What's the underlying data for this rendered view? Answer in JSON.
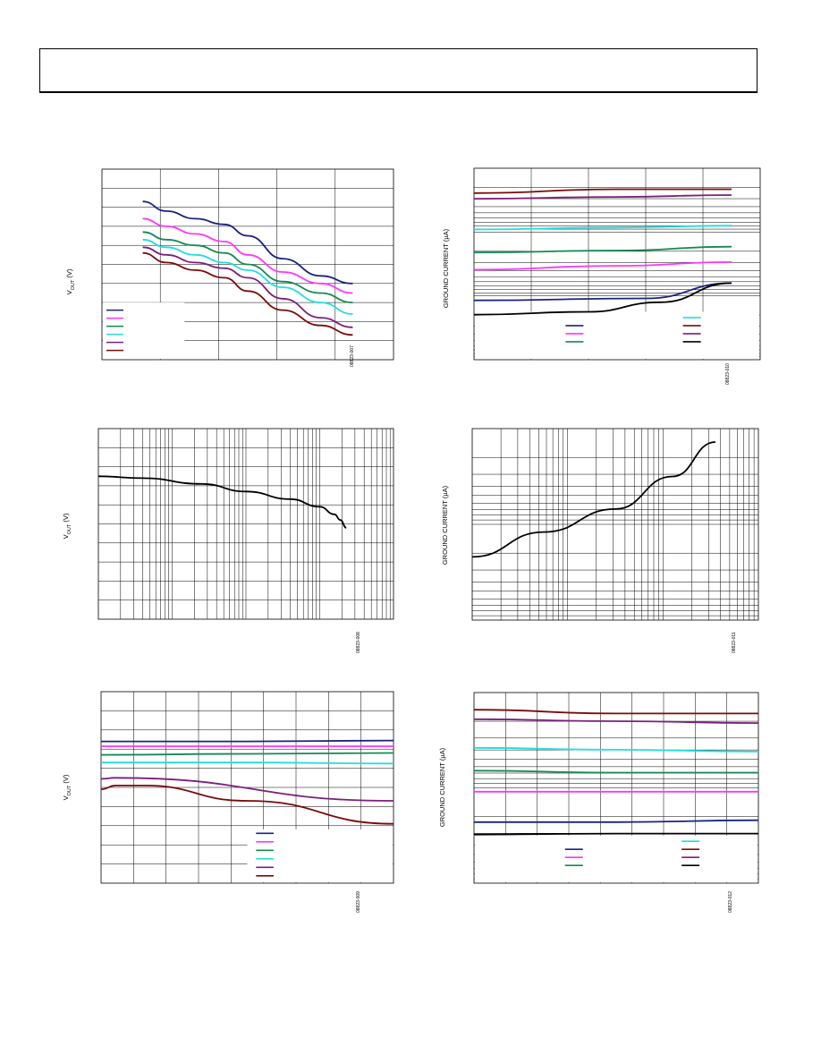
{
  "header": {
    "title": ""
  },
  "charts": [
    {
      "id": "c1",
      "type": "line",
      "ylabel_main": "V",
      "ylabel_sub": "OUT",
      "ylabel_unit": " (V)",
      "figure_code": "08823-007",
      "x_range": [
        0,
        1
      ],
      "y_range": [
        0,
        1
      ],
      "grid": {
        "vlines": 5,
        "hlines": 10
      },
      "legend": {
        "position": "bottom-left",
        "colors": [
          "#1a237e",
          "#ff33ff",
          "#138a52",
          "#22dddd",
          "#7b1f7b",
          "#7a0a0a"
        ]
      },
      "chart_data": {
        "type": "line",
        "series": [
          {
            "color": "#1a237e",
            "x": [
              0.14,
              0.22,
              0.32,
              0.42,
              0.5,
              0.62,
              0.75,
              0.86
            ],
            "y": [
              0.83,
              0.78,
              0.74,
              0.71,
              0.65,
              0.53,
              0.44,
              0.4
            ]
          },
          {
            "color": "#ff33ff",
            "x": [
              0.14,
              0.22,
              0.32,
              0.42,
              0.5,
              0.62,
              0.75,
              0.86
            ],
            "y": [
              0.74,
              0.7,
              0.66,
              0.62,
              0.55,
              0.46,
              0.4,
              0.35
            ]
          },
          {
            "color": "#138a52",
            "x": [
              0.14,
              0.22,
              0.32,
              0.42,
              0.5,
              0.62,
              0.75,
              0.86
            ],
            "y": [
              0.67,
              0.63,
              0.6,
              0.56,
              0.5,
              0.41,
              0.35,
              0.3
            ]
          },
          {
            "color": "#22dddd",
            "x": [
              0.14,
              0.22,
              0.32,
              0.42,
              0.5,
              0.62,
              0.75,
              0.86
            ],
            "y": [
              0.63,
              0.59,
              0.55,
              0.51,
              0.47,
              0.38,
              0.3,
              0.24
            ]
          },
          {
            "color": "#7b1f7b",
            "x": [
              0.14,
              0.22,
              0.32,
              0.42,
              0.5,
              0.62,
              0.75,
              0.86
            ],
            "y": [
              0.59,
              0.55,
              0.51,
              0.48,
              0.43,
              0.32,
              0.22,
              0.17
            ]
          },
          {
            "color": "#7a0a0a",
            "x": [
              0.14,
              0.22,
              0.32,
              0.42,
              0.5,
              0.62,
              0.75,
              0.86
            ],
            "y": [
              0.56,
              0.51,
              0.47,
              0.43,
              0.36,
              0.26,
              0.18,
              0.13
            ]
          }
        ]
      }
    },
    {
      "id": "c2",
      "type": "line",
      "ylabel_main": "GROUND CURRENT (µA)",
      "ylabel_sub": "",
      "ylabel_unit": "",
      "figure_code": "08823-010",
      "x_range": [
        0,
        1
      ],
      "y_range": [
        0,
        1
      ],
      "grid": {
        "vlines": 5,
        "log_decades": 3
      },
      "y_scale": "log",
      "legend": {
        "position": "bottom",
        "colors": [
          "#22dddd",
          "#1a237e",
          "#7a0a0a",
          "#ff33ff",
          "#7b1f7b",
          "#138a52",
          "#000000"
        ]
      },
      "chart_data": {
        "type": "line",
        "series": [
          {
            "color": "#7a0a0a",
            "x": [
              0.0,
              0.5,
              0.9
            ],
            "y": [
              0.87,
              0.89,
              0.89
            ]
          },
          {
            "color": "#7b1f7b",
            "x": [
              0.0,
              0.5,
              0.9
            ],
            "y": [
              0.84,
              0.85,
              0.86
            ]
          },
          {
            "color": "#22dddd",
            "x": [
              0.0,
              0.5,
              0.9
            ],
            "y": [
              0.68,
              0.69,
              0.7
            ]
          },
          {
            "color": "#138a52",
            "x": [
              0.0,
              0.5,
              0.9
            ],
            "y": [
              0.56,
              0.57,
              0.59
            ]
          },
          {
            "color": "#ff33ff",
            "x": [
              0.0,
              0.5,
              0.9
            ],
            "y": [
              0.47,
              0.49,
              0.51
            ]
          },
          {
            "color": "#1a237e",
            "x": [
              0.0,
              0.6,
              0.9
            ],
            "y": [
              0.31,
              0.32,
              0.4
            ]
          },
          {
            "color": "#000000",
            "x": [
              0.0,
              0.4,
              0.65,
              0.9
            ],
            "y": [
              0.235,
              0.25,
              0.3,
              0.4
            ]
          }
        ]
      }
    },
    {
      "id": "c3",
      "type": "line",
      "ylabel_main": "V",
      "ylabel_sub": "OUT",
      "ylabel_unit": " (V)",
      "figure_code": "08823-008",
      "x_scale": "log",
      "grid": {
        "log_decades": 4,
        "hlines": 10
      },
      "chart_data": {
        "type": "line",
        "series": [
          {
            "color": "#000000",
            "x": [
              0.0,
              0.15,
              0.35,
              0.5,
              0.65,
              0.75,
              0.8,
              0.82,
              0.84
            ],
            "y": [
              0.75,
              0.74,
              0.71,
              0.67,
              0.63,
              0.59,
              0.55,
              0.52,
              0.48
            ]
          }
        ]
      }
    },
    {
      "id": "c4",
      "type": "line",
      "ylabel_main": "GROUND CURRENT (µA)",
      "ylabel_sub": "",
      "ylabel_unit": "",
      "figure_code": "08823-011",
      "x_scale": "log",
      "y_scale": "log",
      "grid": {
        "log_decades_x": 3,
        "log_decades_y": 2
      },
      "chart_data": {
        "type": "line",
        "series": [
          {
            "color": "#000000",
            "x": [
              0.0,
              0.25,
              0.5,
              0.7,
              0.85
            ],
            "y": [
              0.33,
              0.46,
              0.58,
              0.75,
              0.93
            ]
          }
        ]
      }
    },
    {
      "id": "c5",
      "type": "line",
      "ylabel_main": "V",
      "ylabel_sub": "OUT",
      "ylabel_unit": " (V)",
      "figure_code": "08823-009",
      "grid": {
        "vlines": 9,
        "hlines": 10
      },
      "legend": {
        "position": "bottom-right",
        "colors": [
          "#1a237e",
          "#ff33ff",
          "#138a52",
          "#22dddd",
          "#7b1f7b",
          "#7a0a0a"
        ]
      },
      "chart_data": {
        "type": "line",
        "series": [
          {
            "color": "#1a237e",
            "x": [
              0.0,
              0.5,
              1.0
            ],
            "y": [
              0.74,
              0.74,
              0.745
            ]
          },
          {
            "color": "#ff33ff",
            "x": [
              0.0,
              0.5,
              1.0
            ],
            "y": [
              0.715,
              0.715,
              0.715
            ]
          },
          {
            "color": "#138a52",
            "x": [
              0.0,
              0.5,
              1.0
            ],
            "y": [
              0.67,
              0.675,
              0.68
            ]
          },
          {
            "color": "#22dddd",
            "x": [
              0.0,
              0.5,
              1.0
            ],
            "y": [
              0.63,
              0.63,
              0.625
            ]
          },
          {
            "color": "#7b1f7b",
            "x": [
              0.0,
              0.05,
              1.0
            ],
            "y": [
              0.545,
              0.55,
              0.43
            ]
          },
          {
            "color": "#7a0a0a",
            "x": [
              0.0,
              0.05,
              0.15,
              0.5,
              1.0
            ],
            "y": [
              0.49,
              0.51,
              0.51,
              0.43,
              0.31
            ]
          }
        ]
      }
    },
    {
      "id": "c6",
      "type": "line",
      "ylabel_main": "GROUND CURRENT (µA)",
      "ylabel_sub": "",
      "ylabel_unit": "",
      "figure_code": "08823-012",
      "y_scale": "log",
      "grid": {
        "vlines": 9,
        "log_decades": 2
      },
      "legend": {
        "position": "bottom",
        "colors": [
          "#22dddd",
          "#1a237e",
          "#7a0a0a",
          "#ff33ff",
          "#7b1f7b",
          "#138a52",
          "#000000"
        ]
      },
      "chart_data": {
        "type": "line",
        "series": [
          {
            "color": "#7a0a0a",
            "x": [
              0.0,
              0.5,
              1.0
            ],
            "y": [
              0.91,
              0.89,
              0.89
            ]
          },
          {
            "color": "#7b1f7b",
            "x": [
              0.0,
              0.5,
              1.0
            ],
            "y": [
              0.86,
              0.85,
              0.84
            ]
          },
          {
            "color": "#22dddd",
            "x": [
              0.0,
              0.5,
              1.0
            ],
            "y": [
              0.71,
              0.7,
              0.69
            ]
          },
          {
            "color": "#138a52",
            "x": [
              0.0,
              0.5,
              1.0
            ],
            "y": [
              0.59,
              0.58,
              0.58
            ]
          },
          {
            "color": "#ff33ff",
            "x": [
              0.0,
              0.5,
              1.0
            ],
            "y": [
              0.48,
              0.48,
              0.48
            ]
          },
          {
            "color": "#1a237e",
            "x": [
              0.0,
              0.5,
              1.0
            ],
            "y": [
              0.32,
              0.32,
              0.33
            ]
          },
          {
            "color": "#000000",
            "x": [
              0.0,
              0.5,
              1.0
            ],
            "y": [
              0.255,
              0.26,
              0.26
            ]
          }
        ]
      }
    }
  ]
}
